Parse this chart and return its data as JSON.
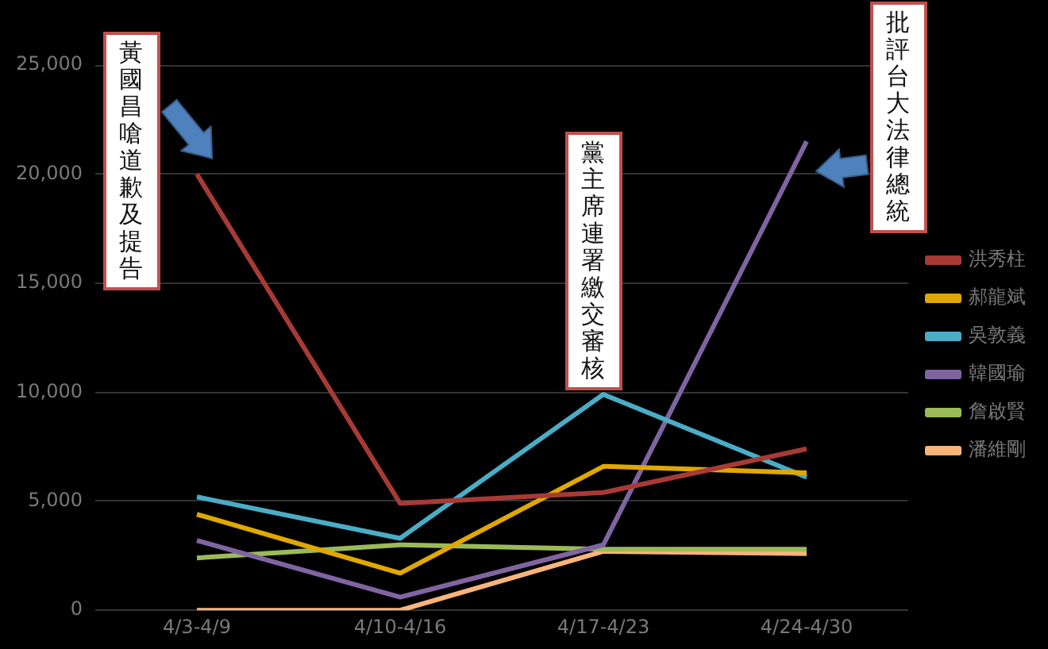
{
  "chart_data": {
    "type": "line",
    "categories": [
      "4/3-4/9",
      "4/10-4/16",
      "4/17-4/23",
      "4/24-4/30"
    ],
    "series": [
      {
        "name": "洪秀柱",
        "color": "#a83a36",
        "values": [
          20000,
          4900,
          5400,
          7400
        ]
      },
      {
        "name": "郝龍斌",
        "color": "#e0a800",
        "values": [
          4400,
          1700,
          6600,
          6300
        ]
      },
      {
        "name": "吳敦義",
        "color": "#4bacc6",
        "values": [
          5200,
          3300,
          9900,
          6100
        ]
      },
      {
        "name": "韓國瑜",
        "color": "#8064a2",
        "values": [
          3200,
          600,
          3000,
          21500
        ]
      },
      {
        "name": "詹啟賢",
        "color": "#9bbb59",
        "values": [
          2400,
          3000,
          2800,
          2800
        ]
      },
      {
        "name": "潘維剛",
        "color": "#f9b47c",
        "values": [
          0,
          0,
          2700,
          2600
        ]
      }
    ],
    "ylim": [
      0,
      25000
    ],
    "yticks": [
      0,
      {
        "value": 5000,
        "label": "5,000"
      },
      {
        "value": 10000,
        "label": "10,000"
      },
      {
        "value": 15000,
        "label": "15,000"
      },
      {
        "value": 20000,
        "label": "20,000"
      },
      {
        "value": 25000,
        "label": "25,000"
      }
    ],
    "annotations": [
      "黃國昌嗆道歉及提告",
      "黨主席連署繳交審核",
      "批評台大法律總統"
    ],
    "grid": "y",
    "legend": "right",
    "marker": "none",
    "line_style": "solid"
  }
}
